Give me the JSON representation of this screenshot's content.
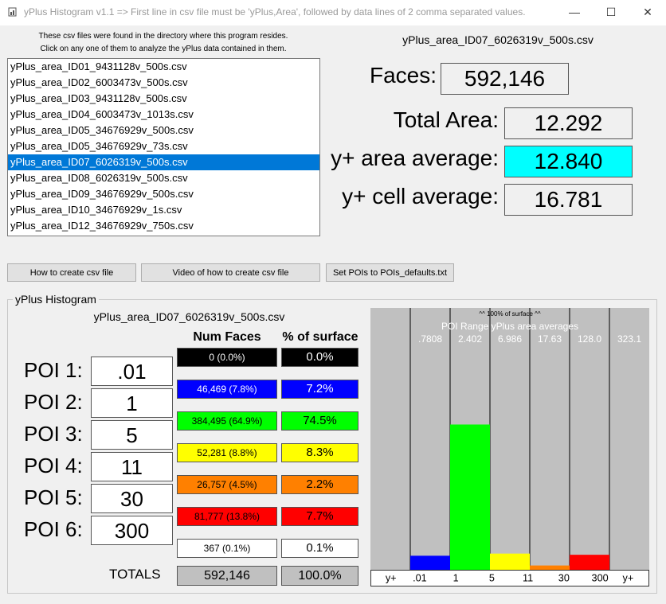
{
  "window": {
    "title": "yPlus Histogram v1.1 => First line in csv file must be 'yPlus,Area', followed by data lines of 2 comma separated values.",
    "minimize": "—",
    "maximize": "☐",
    "close": "✕"
  },
  "info": {
    "line1": "These csv files were found in the directory where this program resides.",
    "line2": "Click on any one of them to analyze the yPlus data contained in them."
  },
  "files": [
    "yPlus_area_ID01_9431128v_500s.csv",
    "yPlus_area_ID02_6003473v_500s.csv",
    "yPlus_area_ID03_9431128v_500s.csv",
    "yPlus_area_ID04_6003473v_1013s.csv",
    "yPlus_area_ID05_34676929v_500s.csv",
    "yPlus_area_ID05_34676929v_73s.csv",
    "yPlus_area_ID07_6026319v_500s.csv",
    "yPlus_area_ID08_6026319v_500s.csv",
    "yPlus_area_ID09_34676929v_500s.csv",
    "yPlus_area_ID10_34676929v_1s.csv",
    "yPlus_area_ID12_34676929v_750s.csv"
  ],
  "selected_index": 6,
  "selected_file": "yPlus_area_ID07_6026319v_500s.csv",
  "stats": {
    "faces_label": "Faces:",
    "faces_value": "592,146",
    "area_label": "Total Area:",
    "area_value": "12.292",
    "area_avg_label": "y+ area average:",
    "area_avg_value": "12.840",
    "cell_avg_label": "y+ cell average:",
    "cell_avg_value": "16.781",
    "highlight_color": "#00ffff"
  },
  "buttons": {
    "how_to": "How to create csv file",
    "video": "Video of how to create csv file",
    "set_pois": "Set POIs to POIs_defaults.txt"
  },
  "histogram": {
    "group_title": "yPlus Histogram",
    "file": "yPlus_area_ID07_6026319v_500s.csv",
    "header_faces": "Num Faces",
    "header_surface": "% of surface",
    "pois": [
      {
        "label": "POI 1:",
        "value": ".01"
      },
      {
        "label": "POI 2:",
        "value": "1"
      },
      {
        "label": "POI 3:",
        "value": "5"
      },
      {
        "label": "POI 4:",
        "value": "11"
      },
      {
        "label": "POI 5:",
        "value": "30"
      },
      {
        "label": "POI 6:",
        "value": "300"
      }
    ],
    "rows": [
      {
        "faces": "0 (0.0%)",
        "surface": "0.0%",
        "color": "#000000",
        "text": "#ffffff"
      },
      {
        "faces": "46,469 (7.8%)",
        "surface": "7.2%",
        "color": "#0000ff",
        "text": "#ffffff"
      },
      {
        "faces": "384,495 (64.9%)",
        "surface": "74.5%",
        "color": "#00ff00",
        "text": "#000000"
      },
      {
        "faces": "52,281 (8.8%)",
        "surface": "8.3%",
        "color": "#ffff00",
        "text": "#000000"
      },
      {
        "faces": "26,757 (4.5%)",
        "surface": "2.2%",
        "color": "#ff8000",
        "text": "#000000"
      },
      {
        "faces": "81,777 (13.8%)",
        "surface": "7.7%",
        "color": "#ff0000",
        "text": "#000000"
      },
      {
        "faces": "367 (0.1%)",
        "surface": "0.1%",
        "color": "#ffffff",
        "text": "#000000"
      }
    ],
    "totals_label": "TOTALS",
    "totals_faces": "592,146",
    "totals_surface": "100.0%"
  },
  "chart_data": {
    "type": "bar",
    "title": "POI Range yPlus area averages",
    "top_label": "^^ 100% of surface ^^",
    "averages": [
      ".7808",
      "2.402",
      "6.986",
      "17.63",
      "128.0",
      "323.1"
    ],
    "x_labels": [
      "y+",
      ".01",
      "1",
      "5",
      "11",
      "30",
      "300",
      "y+"
    ],
    "values": [
      0.0,
      7.2,
      74.5,
      8.3,
      2.2,
      7.7,
      0.1
    ],
    "colors": [
      "#000000",
      "#0000ff",
      "#00ff00",
      "#ffff00",
      "#ff8000",
      "#ff0000",
      "#ffffff"
    ],
    "ylim": [
      0,
      100
    ]
  }
}
